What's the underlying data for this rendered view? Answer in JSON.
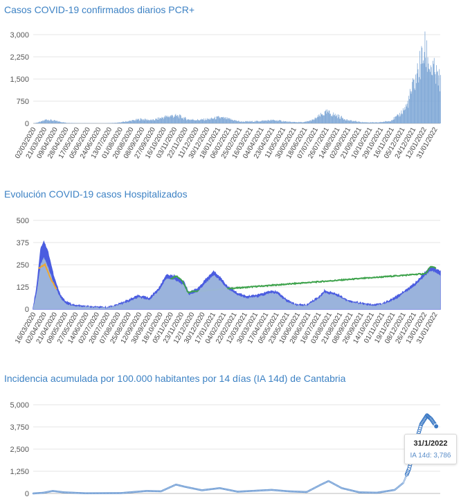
{
  "chart_data": [
    {
      "type": "bar",
      "title": "Casos COVID-19 confirmados diarios PCR+",
      "ylim": [
        0,
        3000
      ],
      "yticks": [
        "3,000",
        "2,250",
        "1,500",
        "750",
        "0"
      ],
      "ytick_values": [
        3000,
        2250,
        1500,
        750,
        0
      ],
      "x_start": "2020-03-02",
      "x_end": "2022-02-07",
      "xtick_labels": [
        "02/03/2020",
        "21/03/2020",
        "09/04/2020",
        "28/04/2020",
        "17/05/2020",
        "05/06/2020",
        "24/06/2020",
        "13/07/2020",
        "01/08/2020",
        "20/08/2020",
        "08/09/2020",
        "27/09/2020",
        "16/10/2020",
        "03/11/2020",
        "22/11/2020",
        "11/12/2020",
        "30/12/2020",
        "18/01/2021",
        "06/02/2021",
        "25/02/2021",
        "16/03/2021",
        "04/04/2021",
        "23/04/2021",
        "11/05/2021",
        "30/05/2021",
        "18/06/2021",
        "07/07/2021",
        "26/07/2021",
        "14/08/2021",
        "02/09/2021",
        "21/09/2021",
        "10/10/2021",
        "29/10/2021",
        "16/11/2021",
        "05/12/2021",
        "24/12/2021",
        "12/01/2022",
        "31/01/2022"
      ],
      "series": [
        {
          "values_by_date": [
            [
              "2020-03-02",
              0
            ],
            [
              "2020-03-15",
              60
            ],
            [
              "2020-03-25",
              140
            ],
            [
              "2020-04-08",
              90
            ],
            [
              "2020-04-28",
              20
            ],
            [
              "2020-05-20",
              8
            ],
            [
              "2020-07-01",
              5
            ],
            [
              "2020-07-25",
              20
            ],
            [
              "2020-08-15",
              80
            ],
            [
              "2020-09-05",
              150
            ],
            [
              "2020-09-25",
              110
            ],
            [
              "2020-10-15",
              220
            ],
            [
              "2020-10-28",
              270
            ],
            [
              "2020-11-10",
              250
            ],
            [
              "2020-11-25",
              140
            ],
            [
              "2020-12-15",
              120
            ],
            [
              "2021-01-05",
              160
            ],
            [
              "2021-01-18",
              210
            ],
            [
              "2021-02-05",
              150
            ],
            [
              "2021-02-25",
              60
            ],
            [
              "2021-03-20",
              70
            ],
            [
              "2021-04-20",
              110
            ],
            [
              "2021-05-01",
              100
            ],
            [
              "2021-05-20",
              50
            ],
            [
              "2021-06-15",
              40
            ],
            [
              "2021-07-01",
              120
            ],
            [
              "2021-07-15",
              300
            ],
            [
              "2021-07-25",
              390
            ],
            [
              "2021-08-10",
              280
            ],
            [
              "2021-09-01",
              100
            ],
            [
              "2021-09-25",
              40
            ],
            [
              "2021-10-20",
              30
            ],
            [
              "2021-11-10",
              80
            ],
            [
              "2021-11-25",
              250
            ],
            [
              "2021-12-10",
              600
            ],
            [
              "2021-12-20",
              1200
            ],
            [
              "2021-12-28",
              1700
            ],
            [
              "2022-01-05",
              2200
            ],
            [
              "2022-01-10",
              2550
            ],
            [
              "2022-01-15",
              2350
            ],
            [
              "2022-01-22",
              1950
            ],
            [
              "2022-01-28",
              1750
            ],
            [
              "2022-02-03",
              1550
            ],
            [
              "2022-02-07",
              1500
            ]
          ]
        }
      ]
    },
    {
      "type": "area",
      "title": "Evolución COVID-19 casos  Hospitalizados",
      "ylim": [
        0,
        500
      ],
      "yticks": [
        "500",
        "375",
        "250",
        "125",
        "0"
      ],
      "ytick_values": [
        500,
        375,
        250,
        125,
        0
      ],
      "x_start": "2020-03-16",
      "x_end": "2022-02-07",
      "xtick_labels": [
        "16/03/2020",
        "02/04/2020",
        "21/04/2020",
        "09/05/2020",
        "27/05/2020",
        "14/06/2020",
        "02/07/2020",
        "20/07/2020",
        "07/08/2020",
        "25/08/2020",
        "12/09/2020",
        "30/09/2020",
        "18/10/2020",
        "05/11/2020",
        "23/11/2020",
        "12/12/2020",
        "30/12/2020",
        "17/01/2021",
        "04/02/2021",
        "22/02/2021",
        "12/03/2021",
        "30/03/2021",
        "17/04/2021",
        "05/05/2021",
        "23/05/2021",
        "10/06/2021",
        "28/06/2021",
        "16/07/2021",
        "03/08/2021",
        "21/08/2021",
        "08/09/2021",
        "26/09/2021",
        "14/10/2021",
        "01/11/2021",
        "19/11/2021",
        "08/12/2021",
        "26/12/2021",
        "13/01/2022",
        "31/01/2022"
      ],
      "series": [
        {
          "color": "#9fb8dc",
          "values_by_date": [
            [
              "2020-03-16",
              5
            ],
            [
              "2020-03-22",
              90
            ],
            [
              "2020-03-29",
              250
            ],
            [
              "2020-04-03",
              290
            ],
            [
              "2020-04-10",
              240
            ],
            [
              "2020-04-20",
              140
            ],
            [
              "2020-04-30",
              70
            ],
            [
              "2020-05-10",
              30
            ],
            [
              "2020-05-25",
              18
            ],
            [
              "2020-06-20",
              10
            ],
            [
              "2020-07-20",
              6
            ],
            [
              "2020-08-07",
              20
            ],
            [
              "2020-08-25",
              40
            ],
            [
              "2020-09-12",
              65
            ],
            [
              "2020-09-30",
              50
            ],
            [
              "2020-10-18",
              110
            ],
            [
              "2020-10-28",
              170
            ],
            [
              "2020-11-12",
              165
            ],
            [
              "2020-11-28",
              130
            ],
            [
              "2020-12-05",
              80
            ],
            [
              "2020-12-20",
              95
            ],
            [
              "2021-01-05",
              150
            ],
            [
              "2021-01-17",
              190
            ],
            [
              "2021-01-25",
              170
            ],
            [
              "2021-02-10",
              110
            ],
            [
              "2021-03-01",
              75
            ],
            [
              "2021-03-15",
              60
            ],
            [
              "2021-04-05",
              70
            ],
            [
              "2021-04-25",
              90
            ],
            [
              "2021-05-05",
              85
            ],
            [
              "2021-05-20",
              45
            ],
            [
              "2021-06-05",
              20
            ],
            [
              "2021-06-25",
              18
            ],
            [
              "2021-07-16",
              60
            ],
            [
              "2021-07-25",
              90
            ],
            [
              "2021-08-15",
              75
            ],
            [
              "2021-09-01",
              45
            ],
            [
              "2021-09-20",
              30
            ],
            [
              "2021-10-15",
              18
            ],
            [
              "2021-11-01",
              25
            ],
            [
              "2021-11-20",
              50
            ],
            [
              "2021-12-08",
              90
            ],
            [
              "2021-12-26",
              130
            ],
            [
              "2022-01-13",
              190
            ],
            [
              "2022-01-22",
              215
            ],
            [
              "2022-01-31",
              205
            ],
            [
              "2022-02-07",
              190
            ]
          ]
        },
        {
          "color": "#4b5de0",
          "values_by_date": [
            [
              "2020-03-16",
              5
            ],
            [
              "2020-03-22",
              120
            ],
            [
              "2020-03-29",
              340
            ],
            [
              "2020-04-03",
              380
            ],
            [
              "2020-04-10",
              320
            ],
            [
              "2020-04-20",
              180
            ],
            [
              "2020-04-30",
              85
            ],
            [
              "2020-05-10",
              40
            ],
            [
              "2020-05-25",
              20
            ],
            [
              "2020-06-20",
              12
            ],
            [
              "2020-07-20",
              8
            ],
            [
              "2020-08-07",
              25
            ],
            [
              "2020-08-25",
              50
            ],
            [
              "2020-09-12",
              75
            ],
            [
              "2020-09-30",
              60
            ],
            [
              "2020-10-18",
              125
            ],
            [
              "2020-10-28",
              190
            ],
            [
              "2020-11-12",
              185
            ],
            [
              "2020-11-28",
              150
            ],
            [
              "2020-12-05",
              95
            ],
            [
              "2020-12-20",
              110
            ],
            [
              "2021-01-05",
              170
            ],
            [
              "2021-01-17",
              210
            ],
            [
              "2021-01-25",
              190
            ],
            [
              "2021-02-10",
              125
            ],
            [
              "2021-03-01",
              85
            ],
            [
              "2021-03-15",
              70
            ],
            [
              "2021-04-05",
              80
            ],
            [
              "2021-04-25",
              100
            ],
            [
              "2021-05-05",
              95
            ],
            [
              "2021-05-20",
              55
            ],
            [
              "2021-06-05",
              25
            ],
            [
              "2021-06-25",
              22
            ],
            [
              "2021-07-16",
              70
            ],
            [
              "2021-07-25",
              100
            ],
            [
              "2021-08-15",
              85
            ],
            [
              "2021-09-01",
              50
            ],
            [
              "2021-09-20",
              35
            ],
            [
              "2021-10-15",
              22
            ],
            [
              "2021-11-01",
              30
            ],
            [
              "2021-11-20",
              60
            ],
            [
              "2021-12-08",
              100
            ],
            [
              "2021-12-26",
              145
            ],
            [
              "2022-01-13",
              210
            ],
            [
              "2022-01-22",
              235
            ],
            [
              "2022-01-31",
              225
            ],
            [
              "2022-02-07",
              210
            ]
          ]
        },
        {
          "color": "#3fa34d",
          "values_by_date": [
            [
              "2020-11-05",
              170
            ],
            [
              "2020-11-15",
              185
            ],
            [
              "2020-11-25",
              160
            ],
            [
              "2020-12-05",
              90
            ],
            [
              "2020-12-12",
              100
            ],
            [
              "2022-01-13",
              200
            ],
            [
              "2022-01-22",
              240
            ],
            [
              "2022-01-31",
              232
            ]
          ]
        },
        {
          "color": "#f0a830",
          "values_by_date": [
            [
              "2020-03-25",
              230
            ],
            [
              "2020-04-05",
              250
            ],
            [
              "2020-04-15",
              170
            ],
            [
              "2020-04-25",
              110
            ]
          ]
        }
      ]
    },
    {
      "type": "scatter",
      "title": "Incidencia acumulada por 100.000 habitantes por 14 días (IA 14d) de Cantabria",
      "ylim": [
        0,
        5000
      ],
      "yticks": [
        "5,000",
        "3,750",
        "2,500",
        "1,250",
        "0"
      ],
      "ytick_values": [
        5000,
        3750,
        2500,
        1250,
        0
      ],
      "x_start": "2020-03-02",
      "x_end": "2022-02-07",
      "series": [
        {
          "values_by_date": [
            [
              "2020-03-02",
              0
            ],
            [
              "2020-03-20",
              40
            ],
            [
              "2020-04-05",
              140
            ],
            [
              "2020-04-25",
              60
            ],
            [
              "2020-06-01",
              10
            ],
            [
              "2020-08-01",
              20
            ],
            [
              "2020-09-15",
              140
            ],
            [
              "2020-10-10",
              120
            ],
            [
              "2020-11-05",
              500
            ],
            [
              "2020-11-20",
              380
            ],
            [
              "2020-12-20",
              180
            ],
            [
              "2021-01-20",
              300
            ],
            [
              "2021-02-20",
              100
            ],
            [
              "2021-04-20",
              200
            ],
            [
              "2021-05-20",
              120
            ],
            [
              "2021-06-20",
              80
            ],
            [
              "2021-07-15",
              500
            ],
            [
              "2021-07-28",
              700
            ],
            [
              "2021-08-20",
              300
            ],
            [
              "2021-09-20",
              60
            ],
            [
              "2021-10-20",
              40
            ],
            [
              "2021-11-20",
              200
            ],
            [
              "2021-12-05",
              600
            ],
            [
              "2021-12-15",
              1400
            ],
            [
              "2021-12-25",
              2700
            ],
            [
              "2022-01-05",
              3900
            ],
            [
              "2022-01-15",
              4400
            ],
            [
              "2022-01-22",
              4200
            ],
            [
              "2022-01-31",
              3786
            ]
          ]
        }
      ],
      "tooltip": {
        "date": "31/1/2022",
        "text": "IA 14d: 3,786"
      }
    }
  ]
}
